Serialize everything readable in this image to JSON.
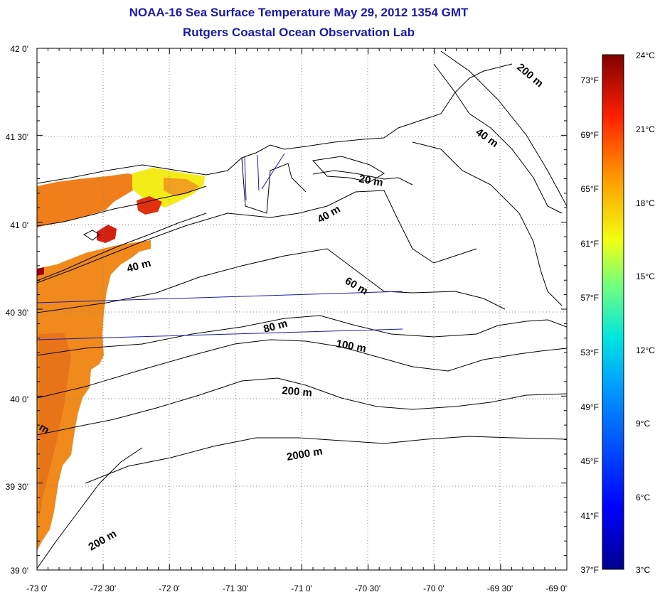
{
  "title": "NOAA-16 Sea Surface Temperature May 29, 2012 1354 GMT",
  "subtitle": "Rutgers Coastal Ocean Observation Lab",
  "map": {
    "lon_range": [
      -73.0,
      -69.0
    ],
    "lat_range": [
      39.0,
      42.0
    ],
    "lon_ticks": [
      "-73 0'",
      "-72 30'",
      "-72 0'",
      "-71 30'",
      "-71 0'",
      "-70 30'",
      "-70 0'",
      "-69 30'",
      "-69 0'"
    ],
    "lat_ticks": [
      "42 0'",
      "41 30'",
      "41 0'",
      "40 30'",
      "40 0'",
      "39 30'",
      "39 0'"
    ]
  },
  "contour_labels": [
    "200 m",
    "40 m",
    "20 m",
    "40 m",
    "40 m",
    "60 m",
    "80 m",
    "100 m",
    "200 m",
    "2000 m",
    "200 m",
    "m"
  ],
  "colorbar": {
    "celsius": [
      "24°C",
      "21°C",
      "18°C",
      "15°C",
      "12°C",
      "9°C",
      "6°C",
      "3°C"
    ],
    "fahrenheit": [
      "73°F",
      "69°F",
      "65°F",
      "61°F",
      "57°F",
      "53°F",
      "49°F",
      "45°F",
      "41°F",
      "37°F"
    ],
    "range_c": [
      3,
      24
    ]
  }
}
